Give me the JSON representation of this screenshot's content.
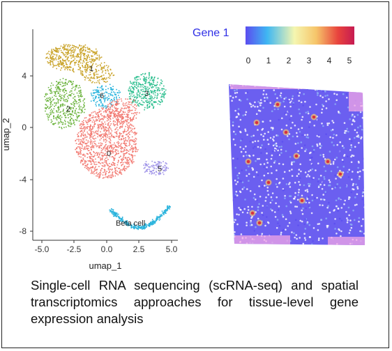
{
  "umap": {
    "xlabel": "umap_1",
    "ylabel": "umap_2",
    "x_ticks": [
      "-5.0",
      "-2.5",
      "0.0",
      "2.5",
      "5.0"
    ],
    "y_ticks": [
      "4",
      "0",
      "-4",
      "-8"
    ],
    "clusters": [
      {
        "label": "0",
        "color": "#f27a72"
      },
      {
        "label": "1",
        "color": "#c9a227"
      },
      {
        "label": "2",
        "color": "#6cb33e"
      },
      {
        "label": "3",
        "color": "#2dbf8f"
      },
      {
        "label": "5",
        "color": "#9f93e8"
      },
      {
        "label": "6",
        "color": "#ee6fc4"
      },
      {
        "label": "Beta cell",
        "color": "#2bb4dd"
      }
    ]
  },
  "legend": {
    "title": "Gene 1",
    "ticks": [
      "0",
      "1",
      "2",
      "3",
      "4",
      "5"
    ],
    "colors": [
      "#5b4df0",
      "#3fb7f2",
      "#f5f6b0",
      "#f6c56a",
      "#e8433d",
      "#c61b52"
    ]
  },
  "spatial": {
    "background_color": "#6b5ff0",
    "edge_color": "#f2a6e6",
    "hotspot_color": "#d9323c"
  },
  "caption": "Single-cell RNA sequencing (scRNA-seq) and spatial transcriptomics approaches for tissue-level gene expression analysis"
}
